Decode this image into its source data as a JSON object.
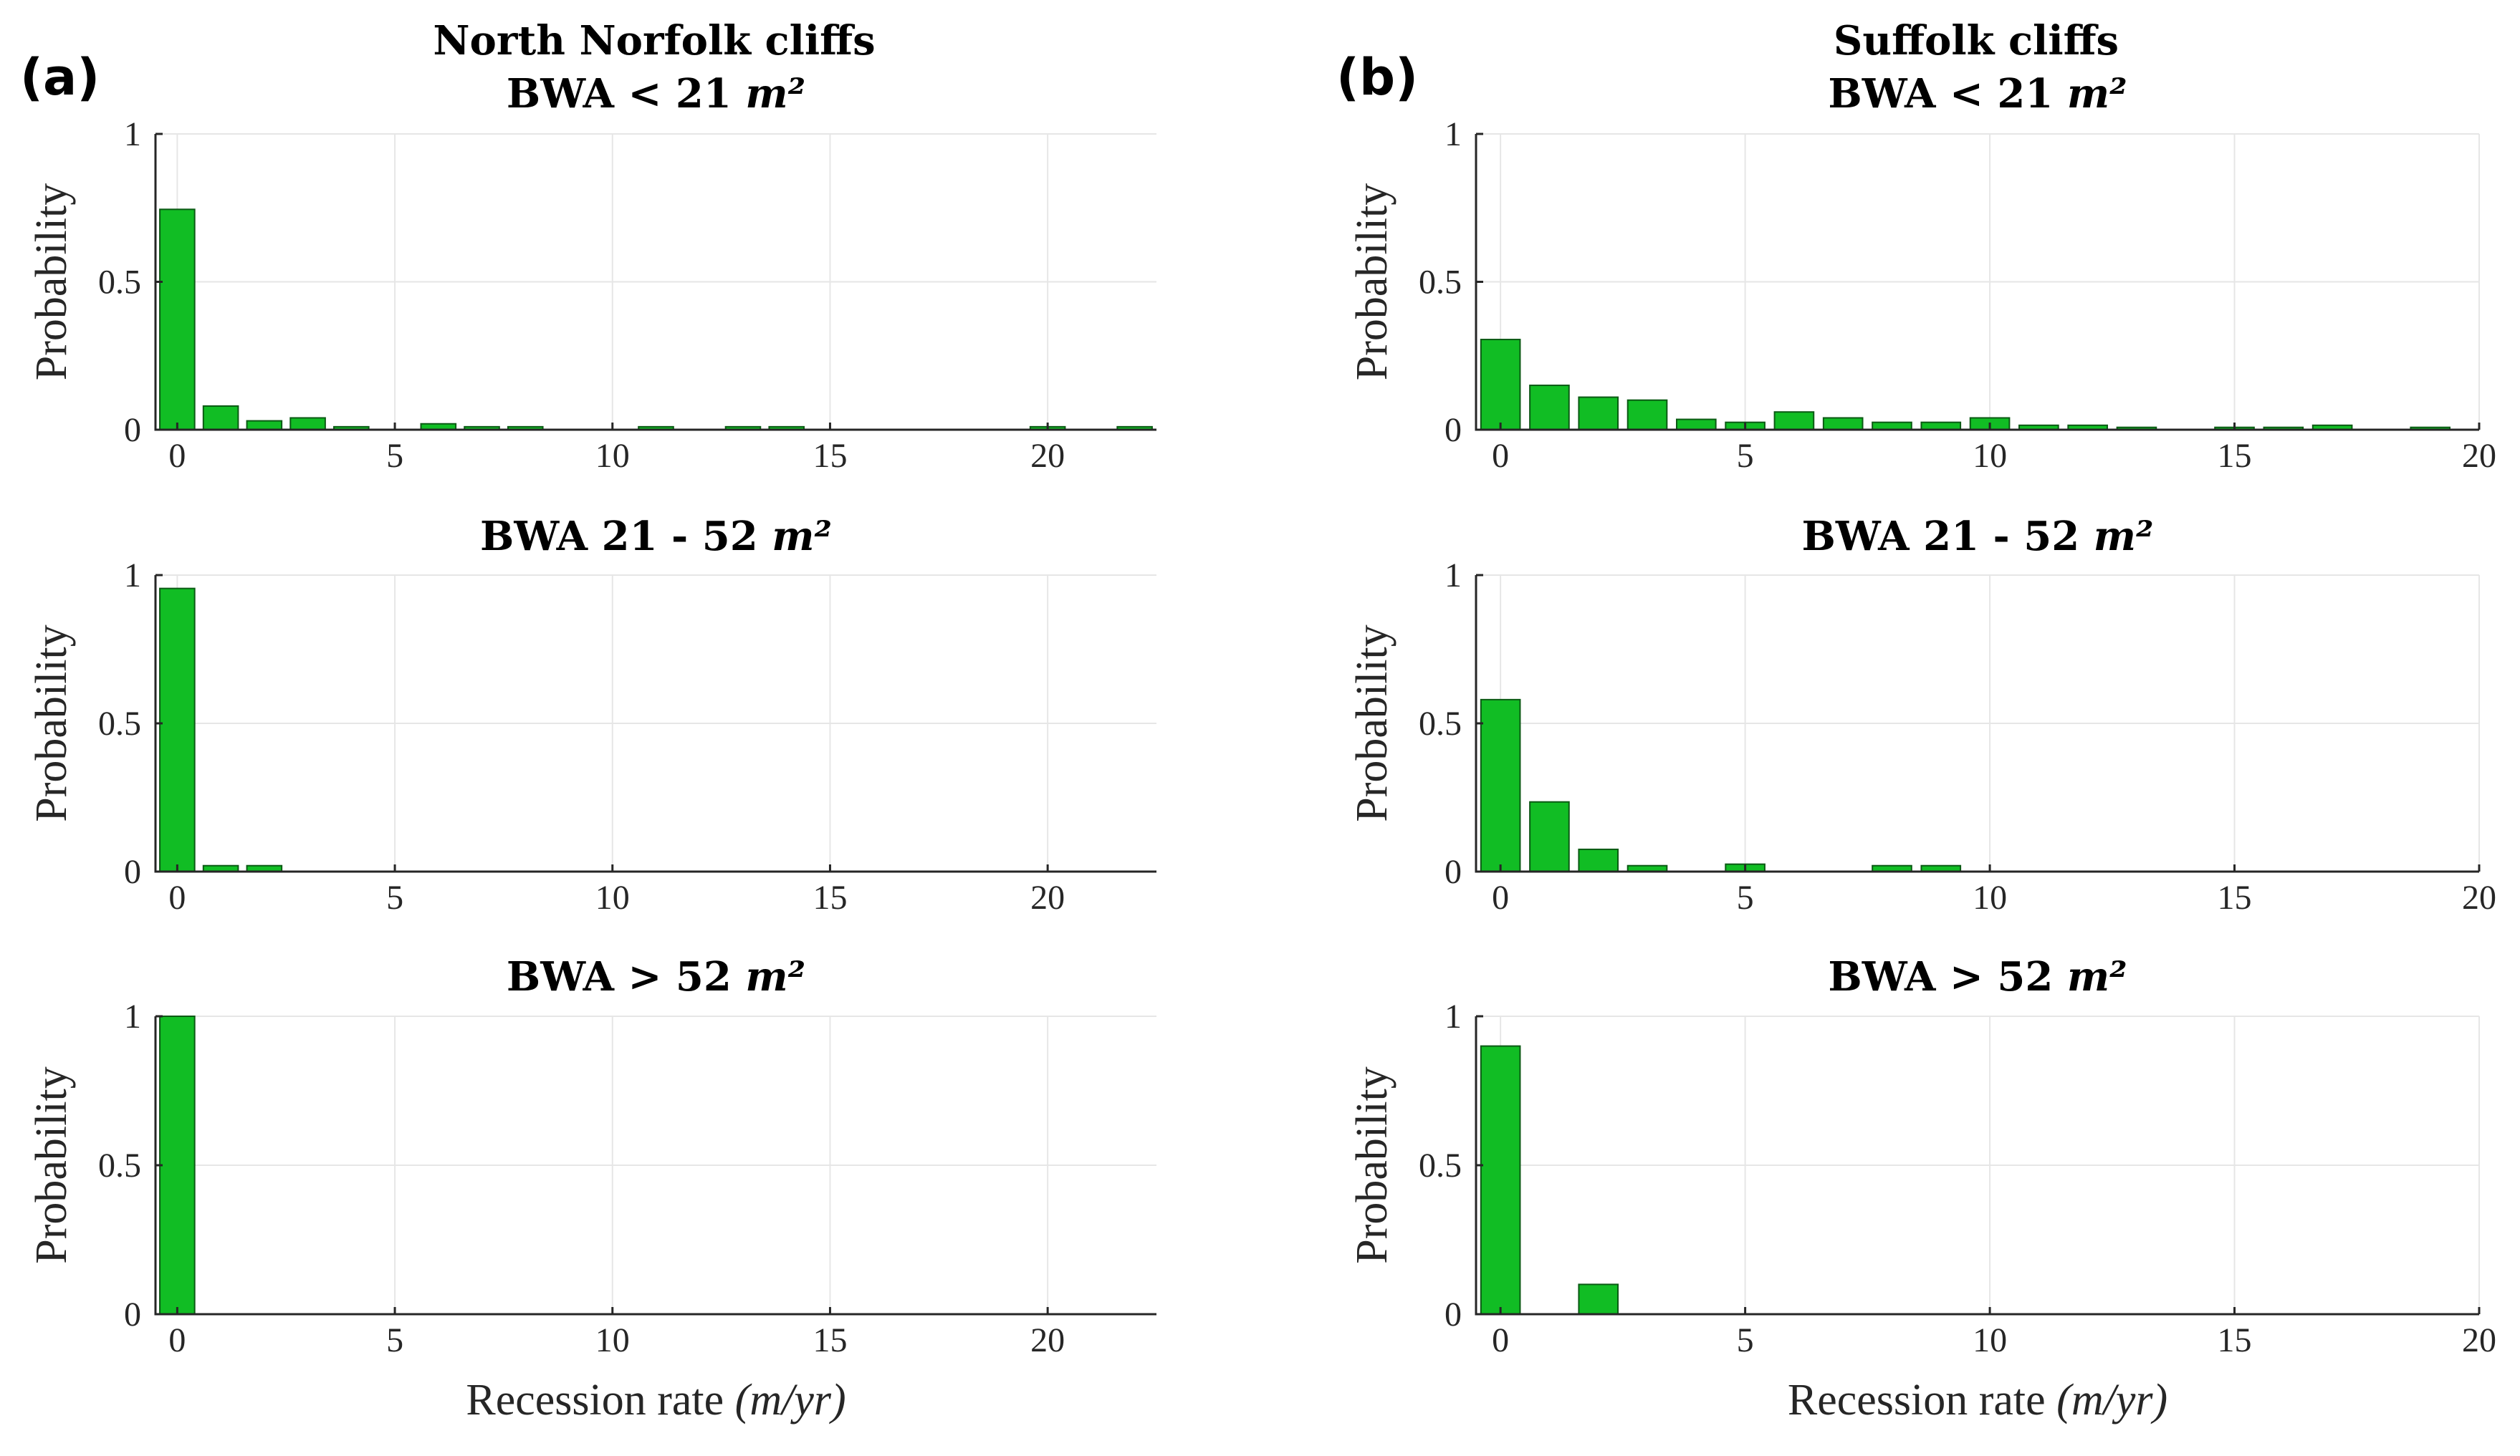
{
  "panels": [
    {
      "id": "a",
      "label": "(a)",
      "heading": "North Norfolk cliffs"
    },
    {
      "id": "b",
      "label": "(b)",
      "heading": "Suffolk cliffs"
    }
  ],
  "labels": {
    "ylabel": "Probability",
    "xlabel_text": "Recession rate ",
    "xlabel_math": "(m/yr)"
  },
  "chart_data": [
    {
      "type": "bar",
      "panel": "a",
      "row": 0,
      "title_text": "BWA < 21 ",
      "title_math": "m²",
      "xlim": [
        -0.5,
        22.5
      ],
      "ylim": [
        0,
        1
      ],
      "xticks": [
        0,
        5,
        10,
        15,
        20
      ],
      "yticks": [
        0,
        0.5,
        1
      ],
      "x": [
        0,
        1,
        2,
        3,
        4,
        6,
        7,
        8,
        11,
        13,
        14,
        20,
        22
      ],
      "values": [
        0.745,
        0.08,
        0.03,
        0.04,
        0.01,
        0.02,
        0.01,
        0.01,
        0.01,
        0.01,
        0.01,
        0.01,
        0.01
      ],
      "xlabel": "",
      "ylabel": "Probability"
    },
    {
      "type": "bar",
      "panel": "a",
      "row": 1,
      "title_text": "BWA 21 - 52 ",
      "title_math": "m²",
      "xlim": [
        -0.5,
        22.5
      ],
      "ylim": [
        0,
        1
      ],
      "xticks": [
        0,
        5,
        10,
        15,
        20
      ],
      "yticks": [
        0,
        0.5,
        1
      ],
      "x": [
        0,
        1,
        2
      ],
      "values": [
        0.955,
        0.02,
        0.02
      ],
      "xlabel": "",
      "ylabel": "Probability"
    },
    {
      "type": "bar",
      "panel": "a",
      "row": 2,
      "title_text": "BWA > 52 ",
      "title_math": "m²",
      "xlim": [
        -0.5,
        22.5
      ],
      "ylim": [
        0,
        1
      ],
      "xticks": [
        0,
        5,
        10,
        15,
        20
      ],
      "yticks": [
        0,
        0.5,
        1
      ],
      "x": [
        0
      ],
      "values": [
        1.0
      ],
      "xlabel": "Recession rate (m/yr)",
      "ylabel": "Probability"
    },
    {
      "type": "bar",
      "panel": "b",
      "row": 0,
      "title_text": "BWA < 21 ",
      "title_math": "m²",
      "xlim": [
        -0.5,
        20
      ],
      "ylim": [
        0,
        1
      ],
      "xticks": [
        0,
        5,
        10,
        15,
        20
      ],
      "yticks": [
        0,
        0.5,
        1
      ],
      "x": [
        0,
        1,
        2,
        3,
        4,
        5,
        6,
        7,
        8,
        9,
        10,
        11,
        12,
        13,
        15,
        16,
        17,
        19
      ],
      "values": [
        0.305,
        0.15,
        0.11,
        0.1,
        0.035,
        0.025,
        0.06,
        0.04,
        0.025,
        0.025,
        0.04,
        0.015,
        0.015,
        0.008,
        0.008,
        0.008,
        0.015,
        0.008
      ],
      "xlabel": "",
      "ylabel": "Probability"
    },
    {
      "type": "bar",
      "panel": "b",
      "row": 1,
      "title_text": "BWA 21 - 52 ",
      "title_math": "m²",
      "xlim": [
        -0.5,
        20
      ],
      "ylim": [
        0,
        1
      ],
      "xticks": [
        0,
        5,
        10,
        15,
        20
      ],
      "yticks": [
        0,
        0.5,
        1
      ],
      "x": [
        0,
        1,
        2,
        3,
        5,
        8,
        9
      ],
      "values": [
        0.58,
        0.235,
        0.075,
        0.02,
        0.025,
        0.02,
        0.02
      ],
      "xlabel": "",
      "ylabel": "Probability"
    },
    {
      "type": "bar",
      "panel": "b",
      "row": 2,
      "title_text": "BWA > 52 ",
      "title_math": "m²",
      "xlim": [
        -0.5,
        20
      ],
      "ylim": [
        0,
        1
      ],
      "xticks": [
        0,
        5,
        10,
        15,
        20
      ],
      "yticks": [
        0,
        0.5,
        1
      ],
      "x": [
        0,
        2
      ],
      "values": [
        0.9,
        0.1
      ],
      "xlabel": "Recession rate (m/yr)",
      "ylabel": "Probability"
    }
  ]
}
